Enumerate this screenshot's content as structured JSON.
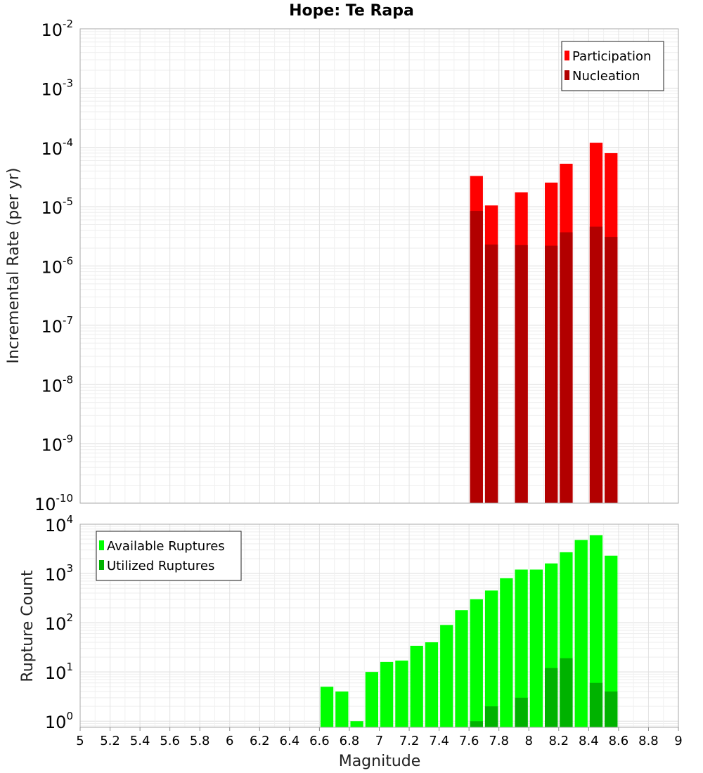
{
  "chart_data": [
    {
      "type": "bar",
      "title": "Hope: Te Rapa",
      "xlabel": "Magnitude",
      "ylabel": "Incremental Rate (per yr)",
      "yscale": "log",
      "ylim": [
        1e-10,
        0.01
      ],
      "y_ticks": [
        {
          "base": "10",
          "exp": "-10"
        },
        {
          "base": "10",
          "exp": "-9"
        },
        {
          "base": "10",
          "exp": "-8"
        },
        {
          "base": "10",
          "exp": "-7"
        },
        {
          "base": "10",
          "exp": "-6"
        },
        {
          "base": "10",
          "exp": "-5"
        },
        {
          "base": "10",
          "exp": "-4"
        },
        {
          "base": "10",
          "exp": "-3"
        },
        {
          "base": "10",
          "exp": "-2"
        }
      ],
      "grid": true,
      "legend_position": "top-right",
      "x": [
        7.65,
        7.75,
        7.95,
        8.15,
        8.25,
        8.45,
        8.55
      ],
      "series": [
        {
          "name": "Participation",
          "color": "#ff0000",
          "values": [
            3.3e-05,
            1.05e-05,
            1.75e-05,
            2.55e-05,
            5.3e-05,
            0.00012,
            8e-05
          ]
        },
        {
          "name": "Nucleation",
          "color": "#b20000",
          "values": [
            8.5e-06,
            2.3e-06,
            2.25e-06,
            2.2e-06,
            3.7e-06,
            4.6e-06,
            3.1e-06
          ]
        }
      ]
    },
    {
      "type": "bar",
      "xlabel": "Magnitude",
      "ylabel": "Rupture Count",
      "yscale": "log",
      "ylim": [
        0.75,
        10000
      ],
      "y_ticks": [
        {
          "base": "10",
          "exp": "0"
        },
        {
          "base": "10",
          "exp": "1"
        },
        {
          "base": "10",
          "exp": "2"
        },
        {
          "base": "10",
          "exp": "3"
        },
        {
          "base": "10",
          "exp": "4"
        }
      ],
      "grid": true,
      "legend_position": "top-left",
      "x_ticks": [
        "5",
        "5.2",
        "5.4",
        "5.6",
        "5.8",
        "6",
        "6.2",
        "6.4",
        "6.6",
        "6.8",
        "7",
        "7.2",
        "7.4",
        "7.6",
        "7.8",
        "8",
        "8.2",
        "8.4",
        "8.6",
        "8.8",
        "9"
      ],
      "xlim": [
        5,
        9
      ],
      "series": [
        {
          "name": "Available Ruptures",
          "color": "#00ff00",
          "x": [
            6.65,
            6.75,
            6.85,
            6.95,
            7.05,
            7.15,
            7.25,
            7.35,
            7.45,
            7.55,
            7.65,
            7.75,
            7.85,
            7.95,
            8.05,
            8.15,
            8.25,
            8.35,
            8.45,
            8.55
          ],
          "values": [
            5,
            4,
            1,
            10,
            16,
            17,
            34,
            40,
            90,
            180,
            300,
            450,
            800,
            1200,
            1200,
            1600,
            2700,
            4800,
            6000,
            2300
          ]
        },
        {
          "name": "Utilized Ruptures",
          "color": "#00b200",
          "x": [
            7.65,
            7.75,
            7.95,
            8.15,
            8.25,
            8.45,
            8.55
          ],
          "values": [
            1,
            2,
            3,
            12,
            19,
            6,
            4
          ]
        }
      ]
    }
  ]
}
